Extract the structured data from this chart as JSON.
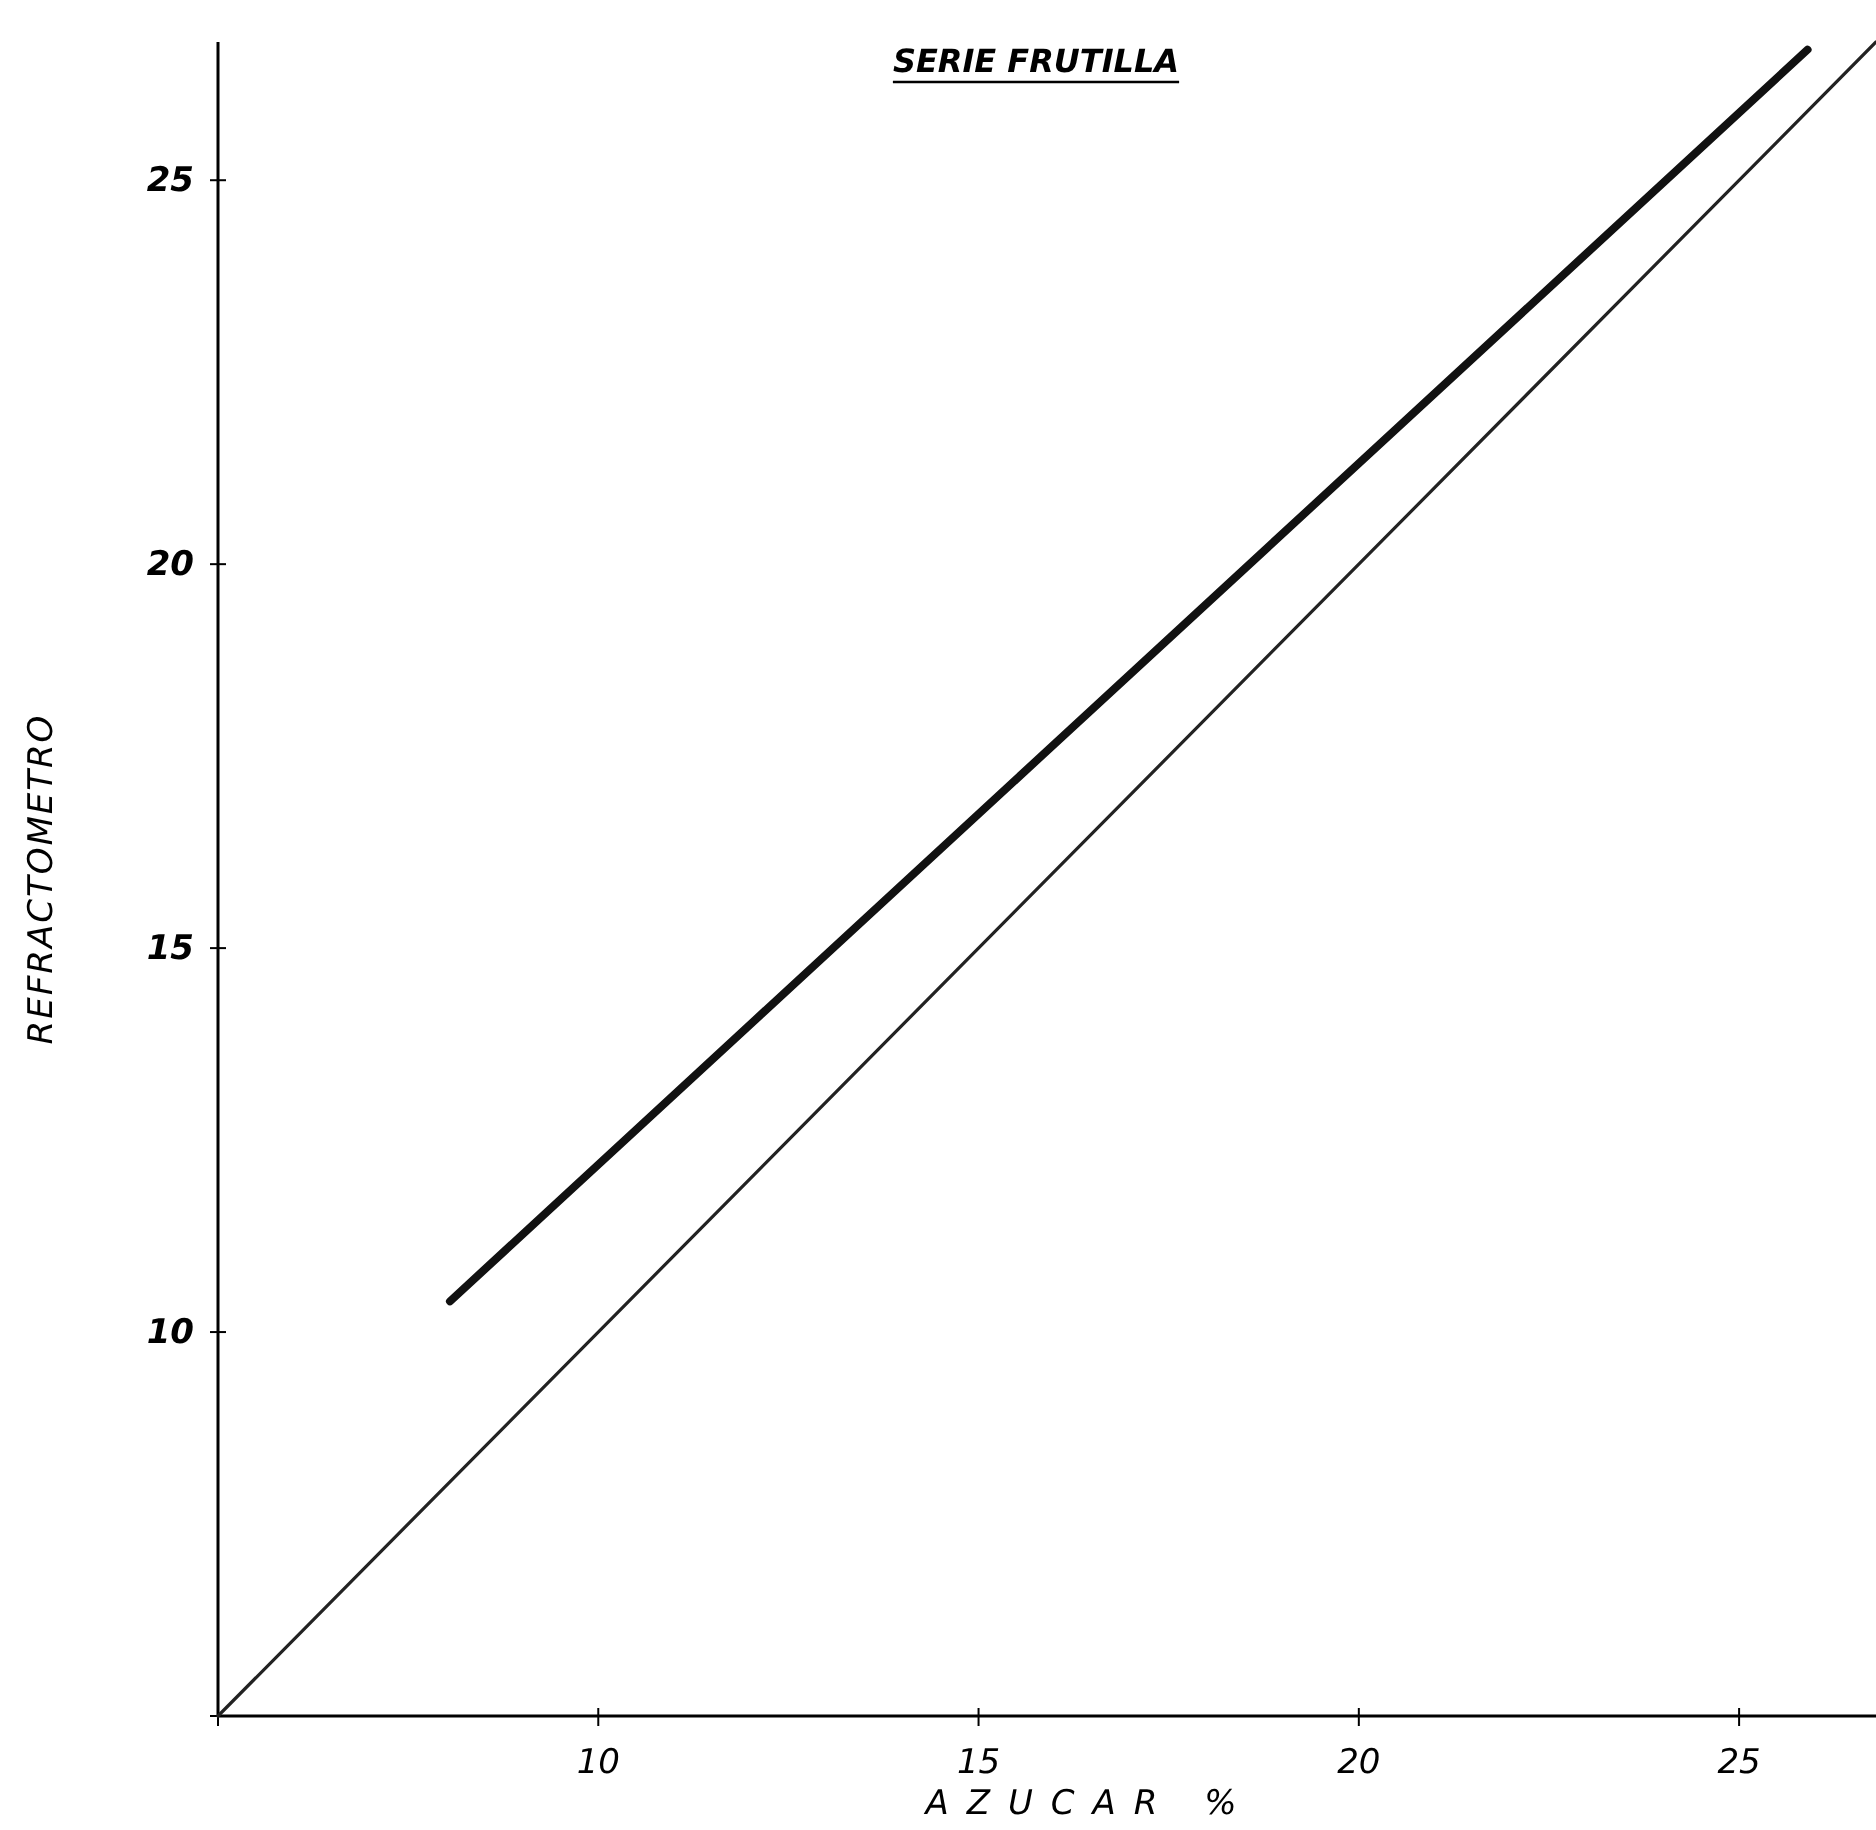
{
  "chart_data": {
    "type": "line",
    "title": "SERIE FRUTILLA",
    "xlabel": "AZUCAR %",
    "ylabel": "REFRACTOMETRO",
    "xlim": [
      5,
      26.8
    ],
    "ylim": [
      5,
      26.8
    ],
    "xticks": [
      {
        "value": 5,
        "label": null
      },
      10,
      15,
      20,
      25
    ],
    "yticks": [
      {
        "value": 5,
        "label": null
      },
      10,
      15,
      20,
      25
    ],
    "grid": false,
    "marker": "none",
    "series": [
      {
        "color": "#111111",
        "x": [
          8.05,
          25.9
        ],
        "values": [
          10.4,
          26.7
        ]
      },
      {
        "color": "#222222",
        "x": [
          5,
          26.8
        ],
        "values": [
          5,
          26.8
        ]
      }
    ]
  }
}
